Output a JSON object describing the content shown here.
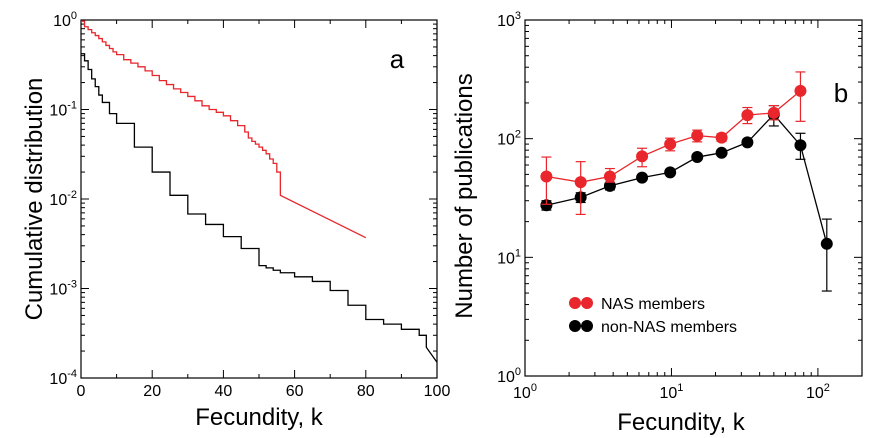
{
  "chart_data": [
    {
      "panel": "a",
      "type": "line",
      "xlabel": "Fecundity, k",
      "ylabel": "Cumulative distribution",
      "x_scale": "linear",
      "y_scale": "log",
      "xlim": [
        0,
        100
      ],
      "ylim": [
        0.0001,
        1
      ],
      "x_ticks": [
        0,
        20,
        40,
        60,
        80,
        100
      ],
      "y_ticks": [
        {
          "value": 0.0001,
          "base": "10",
          "exp": "-4"
        },
        {
          "value": 0.001,
          "base": "10",
          "exp": "-3"
        },
        {
          "value": 0.01,
          "base": "10",
          "exp": "-2"
        },
        {
          "value": 0.1,
          "base": "10",
          "exp": "-1"
        },
        {
          "value": 1,
          "base": "10",
          "exp": "0"
        }
      ],
      "grid": false,
      "series": [
        {
          "color": "#e8262b",
          "step": true,
          "x": [
            0,
            1,
            2,
            3,
            4,
            5,
            6,
            7,
            8,
            9,
            10,
            12,
            14,
            16,
            18,
            20,
            22,
            24,
            26,
            28,
            30,
            32,
            34,
            36,
            38,
            40,
            42,
            44,
            46,
            47,
            48,
            49,
            50,
            51,
            52,
            53,
            54,
            55,
            56,
            80
          ],
          "y": [
            0.97,
            0.84,
            0.78,
            0.72,
            0.67,
            0.62,
            0.57,
            0.52,
            0.48,
            0.44,
            0.41,
            0.36,
            0.33,
            0.3,
            0.27,
            0.24,
            0.21,
            0.19,
            0.17,
            0.155,
            0.14,
            0.125,
            0.11,
            0.1,
            0.093,
            0.085,
            0.075,
            0.066,
            0.056,
            0.048,
            0.044,
            0.041,
            0.038,
            0.035,
            0.032,
            0.028,
            0.025,
            0.02,
            0.011,
            0.0037
          ]
        },
        {
          "color": "#000000",
          "step": true,
          "x": [
            0,
            1,
            2,
            3,
            4,
            5,
            6,
            8,
            10,
            15,
            20,
            25,
            30,
            35,
            40,
            45,
            50,
            52,
            54,
            56,
            60,
            65,
            70,
            75,
            80,
            85,
            90,
            95,
            97,
            100
          ],
          "y": [
            0.42,
            0.35,
            0.28,
            0.22,
            0.18,
            0.145,
            0.12,
            0.09,
            0.07,
            0.038,
            0.02,
            0.011,
            0.0068,
            0.0052,
            0.0038,
            0.0028,
            0.0018,
            0.0017,
            0.0016,
            0.0015,
            0.00135,
            0.0012,
            0.00095,
            0.00065,
            0.00045,
            0.0004,
            0.00035,
            0.0003,
            0.00022,
            0.00015
          ]
        }
      ],
      "annotations": [
        {
          "text": "a"
        }
      ]
    },
    {
      "panel": "b",
      "type": "line",
      "xlabel": "Fecundity, k",
      "ylabel": "Number of publications",
      "x_scale": "log",
      "y_scale": "log",
      "xlim": [
        1,
        200
      ],
      "ylim": [
        1,
        1000
      ],
      "x_ticks": [
        {
          "value": 1,
          "base": "10",
          "exp": "0"
        },
        {
          "value": 10,
          "base": "10",
          "exp": "1"
        },
        {
          "value": 100,
          "base": "10",
          "exp": "2"
        }
      ],
      "y_ticks": [
        {
          "value": 1,
          "base": "10",
          "exp": "0"
        },
        {
          "value": 10,
          "base": "10",
          "exp": "1"
        },
        {
          "value": 100,
          "base": "10",
          "exp": "2"
        },
        {
          "value": 1000,
          "base": "10",
          "exp": "3"
        }
      ],
      "grid": false,
      "legend_position": "bottom-left",
      "series": [
        {
          "name": "NAS members",
          "color": "#e8262b",
          "x": [
            1.4,
            2.4,
            3.8,
            6.3,
            9.8,
            15,
            22,
            33,
            50,
            76
          ],
          "y": [
            48,
            43,
            48,
            71,
            90,
            106,
            102,
            158,
            165,
            253
          ],
          "y_err_low": [
            28,
            23,
            43,
            58,
            79,
            94,
            95,
            134,
            144,
            140
          ],
          "y_err_high": [
            70,
            64,
            56,
            83,
            101,
            118,
            110,
            183,
            190,
            365
          ]
        },
        {
          "name": "non-NAS members",
          "color": "#000000",
          "x": [
            1.4,
            2.4,
            3.8,
            6.3,
            9.8,
            15,
            22,
            33,
            50,
            76,
            115
          ],
          "y": [
            27.5,
            32,
            40,
            47,
            52,
            70,
            76,
            93,
            160,
            88,
            13
          ],
          "y_err_low": [
            25,
            29,
            37,
            45,
            50,
            68,
            74,
            90,
            128,
            67,
            5.2
          ],
          "y_err_high": [
            30,
            35,
            43,
            49,
            54,
            72,
            78,
            96,
            190,
            111,
            21
          ]
        }
      ],
      "annotations": [
        {
          "text": "b"
        }
      ]
    }
  ]
}
